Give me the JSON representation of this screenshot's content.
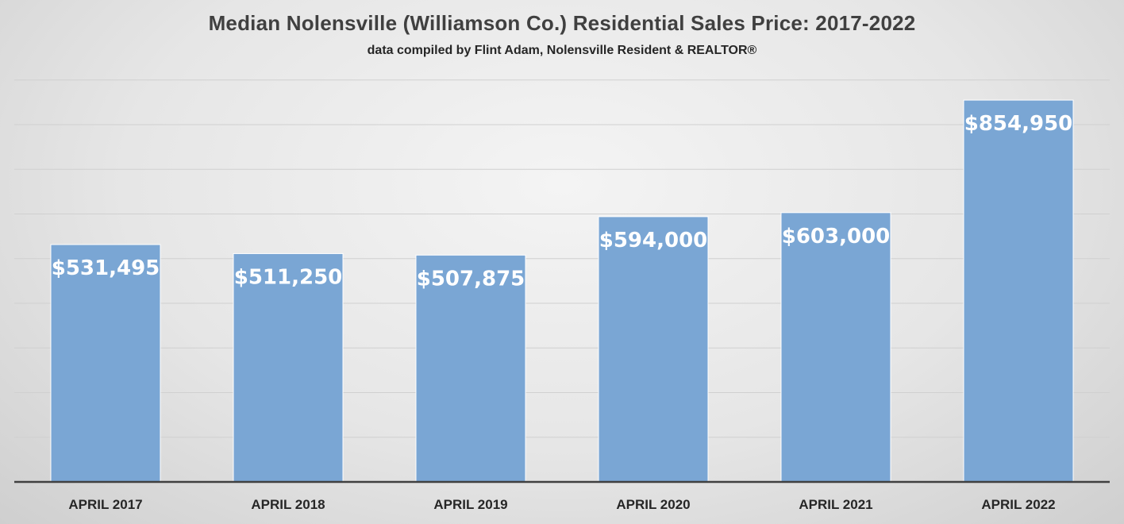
{
  "chart_data": {
    "type": "bar",
    "title": "Median Nolensville (Williamson Co.) Residential Sales Price: 2017-2022",
    "subtitle": "data compiled by Flint Adam, Nolensville Resident & REALTOR®",
    "categories": [
      "APRIL 2017",
      "APRIL 2018",
      "APRIL 2019",
      "APRIL 2020",
      "APRIL 2021",
      "APRIL 2022"
    ],
    "values": [
      531495,
      511250,
      507875,
      594000,
      603000,
      854950
    ],
    "data_labels": [
      "$531,495",
      "$511,250",
      "$507,875",
      "$594,000",
      "$603,000",
      "$854,950"
    ],
    "xlabel": "",
    "ylabel": "",
    "ylim": [
      0,
      900000
    ],
    "y_axis_labels_shown": false,
    "grid": true,
    "legend": "none",
    "bar_color": "#7aa6d4",
    "bar_edge_color": "#ffffff"
  }
}
